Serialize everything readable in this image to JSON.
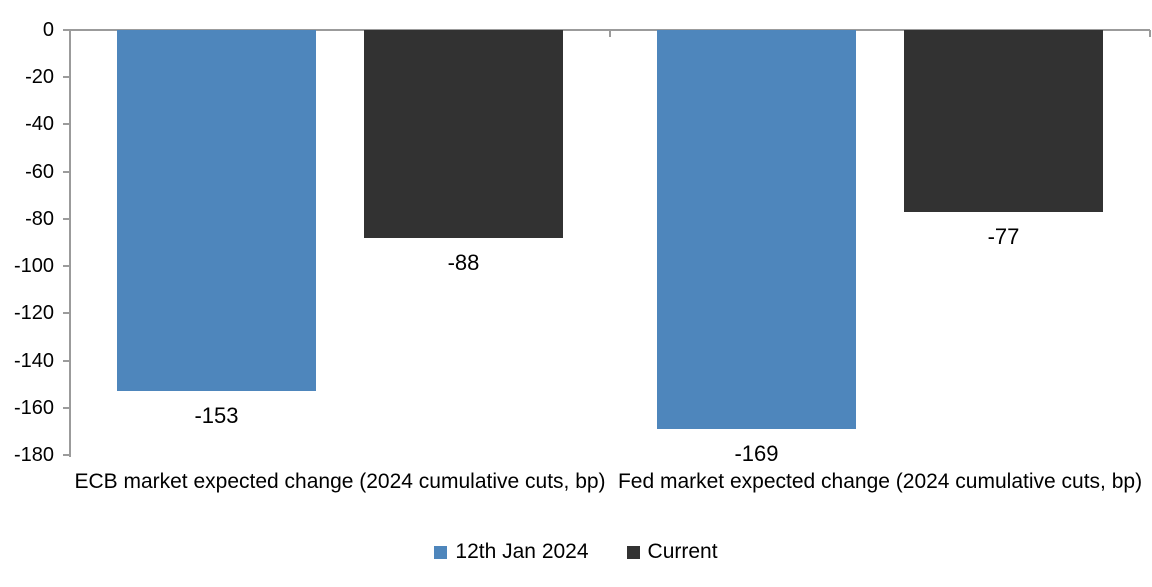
{
  "chart_data": {
    "type": "bar",
    "title": "",
    "categories": [
      "ECB market expected change (2024 cumulative cuts, bp)",
      "Fed market expected change (2024 cumulative cuts, bp)"
    ],
    "series": [
      {
        "name": "12th Jan 2024",
        "color": "#4E86BC",
        "values": [
          -153,
          -169
        ]
      },
      {
        "name": "Current",
        "color": "#323232",
        "values": [
          -88,
          -77
        ]
      }
    ],
    "data_labels": [
      [
        "-153",
        "-169"
      ],
      [
        "-88",
        "-77"
      ]
    ],
    "ylim": [
      -180,
      0
    ],
    "yticks": [
      "0",
      "-20",
      "-40",
      "-60",
      "-80",
      "-100",
      "-120",
      "-140",
      "-160",
      "-180"
    ],
    "ytick_values": [
      0,
      -20,
      -40,
      -60,
      -80,
      -100,
      -120,
      -140,
      -160,
      -180
    ],
    "grid": false,
    "legend_position": "bottom",
    "axis_color": "#9B9B9B",
    "text_color": "#000000",
    "background_color": "#FFFFFF"
  }
}
